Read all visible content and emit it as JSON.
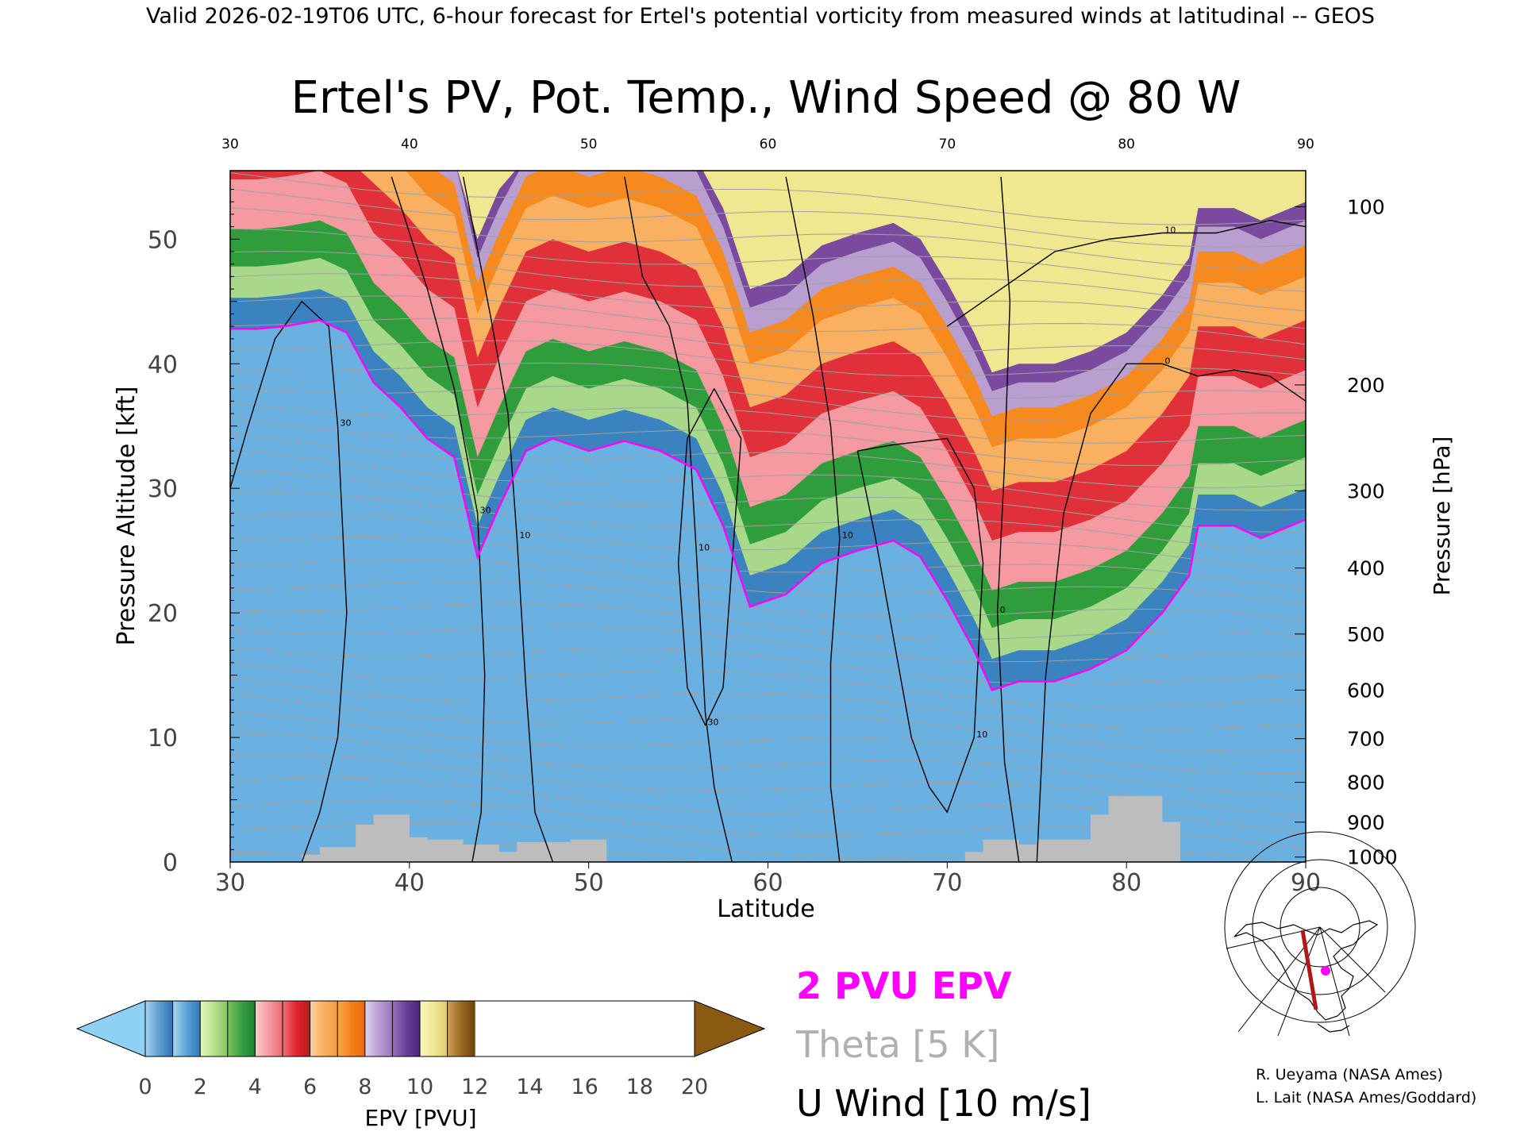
{
  "header": "Valid 2026-02-19T06 UTC, 6-hour forecast for Ertel's potential vorticity from measured winds at latitudinal -- GEOS",
  "chart_data": {
    "type": "heatmap",
    "title": "Ertel's PV, Pot. Temp., Wind Speed @ 80 W",
    "xlabel": "Latitude",
    "ylabel": "Pressure Altitude [kft]",
    "y2label": "Pressure [hPa]",
    "xlim": [
      30,
      90
    ],
    "ylim": [
      0,
      55.5
    ],
    "x_ticks": [
      "30",
      "40",
      "50",
      "60",
      "70",
      "80",
      "90"
    ],
    "x_top_ticks": [
      "30",
      "40",
      "50",
      "60",
      "70",
      "80",
      "90"
    ],
    "y_ticks": [
      {
        "value": 0,
        "label": "0"
      },
      {
        "value": 10,
        "label": "10"
      },
      {
        "value": 20,
        "label": "20"
      },
      {
        "value": 30,
        "label": "30"
      },
      {
        "value": 40,
        "label": "40"
      },
      {
        "value": 50,
        "label": "50"
      }
    ],
    "pressure_ticks": [
      {
        "kft": 52.6,
        "label": "100"
      },
      {
        "kft": 38.3,
        "label": "200"
      },
      {
        "kft": 29.8,
        "label": "300"
      },
      {
        "kft": 23.6,
        "label": "400"
      },
      {
        "kft": 18.3,
        "label": "500"
      },
      {
        "kft": 13.8,
        "label": "600"
      },
      {
        "kft": 9.9,
        "label": "700"
      },
      {
        "kft": 6.4,
        "label": "800"
      },
      {
        "kft": 3.2,
        "label": "900"
      },
      {
        "kft": 0.4,
        "label": "1000"
      }
    ],
    "pv_2pvu_line": [
      [
        30,
        42.8
      ],
      [
        31.5,
        42.8
      ],
      [
        33,
        43.0
      ],
      [
        35,
        43.5
      ],
      [
        36.5,
        42.5
      ],
      [
        38,
        38.5
      ],
      [
        39.5,
        36.5
      ],
      [
        41,
        34.0
      ],
      [
        42.5,
        32.5
      ],
      [
        43.8,
        24.5
      ],
      [
        45,
        28.5
      ],
      [
        46.5,
        33.0
      ],
      [
        48,
        34.0
      ],
      [
        50,
        33.0
      ],
      [
        52,
        33.8
      ],
      [
        54,
        33.0
      ],
      [
        56,
        31.5
      ],
      [
        57.5,
        27.0
      ],
      [
        59,
        20.5
      ],
      [
        61,
        21.5
      ],
      [
        63,
        24.0
      ],
      [
        65,
        25.0
      ],
      [
        67,
        25.8
      ],
      [
        68.5,
        24.5
      ],
      [
        70,
        21.0
      ],
      [
        71.5,
        17.0
      ],
      [
        72.5,
        13.8
      ],
      [
        74,
        14.5
      ],
      [
        76,
        14.5
      ],
      [
        78,
        15.5
      ],
      [
        80,
        17.0
      ],
      [
        82,
        20.0
      ],
      [
        83.5,
        23.0
      ],
      [
        84,
        27.0
      ],
      [
        86,
        27.0
      ],
      [
        87.5,
        26.0
      ],
      [
        90,
        27.5
      ]
    ],
    "surface_terrain": [
      [
        30,
        0
      ],
      [
        34,
        0
      ],
      [
        34,
        0.6
      ],
      [
        35,
        0.6
      ],
      [
        35,
        1.2
      ],
      [
        37,
        1.2
      ],
      [
        37,
        3.0
      ],
      [
        38,
        3.0
      ],
      [
        38,
        3.8
      ],
      [
        40,
        3.8
      ],
      [
        40,
        2.0
      ],
      [
        41,
        2.0
      ],
      [
        41,
        1.8
      ],
      [
        43,
        1.8
      ],
      [
        43,
        1.4
      ],
      [
        45,
        1.4
      ],
      [
        45,
        0.8
      ],
      [
        46,
        0.8
      ],
      [
        46,
        1.6
      ],
      [
        49,
        1.6
      ],
      [
        49,
        1.8
      ],
      [
        51,
        1.8
      ],
      [
        51,
        0
      ],
      [
        71,
        0
      ],
      [
        71,
        0.8
      ],
      [
        72,
        0.8
      ],
      [
        72,
        1.8
      ],
      [
        74,
        1.8
      ],
      [
        74,
        1.4
      ],
      [
        75,
        1.4
      ],
      [
        75,
        1.8
      ],
      [
        78,
        1.8
      ],
      [
        78,
        3.8
      ],
      [
        79,
        3.8
      ],
      [
        79,
        5.3
      ],
      [
        81,
        5.3
      ],
      [
        81,
        3.2
      ],
      [
        80.5,
        3.2
      ],
      [
        81,
        3.2
      ],
      [
        81,
        5.3
      ],
      [
        82,
        5.3
      ],
      [
        82,
        3.2
      ],
      [
        83,
        3.2
      ],
      [
        83,
        0
      ],
      [
        90,
        0
      ]
    ],
    "u_wind_contours": [
      {
        "label": "30",
        "points": [
          [
            30,
            30
          ],
          [
            31,
            35
          ],
          [
            32.5,
            42
          ],
          [
            34,
            45
          ],
          [
            35.5,
            43
          ],
          [
            36,
            35
          ],
          [
            36.5,
            20
          ],
          [
            36,
            10
          ],
          [
            35,
            4
          ],
          [
            34,
            0
          ]
        ]
      },
      {
        "label": "30",
        "points": [
          [
            39,
            55
          ],
          [
            41,
            46
          ],
          [
            42.5,
            38
          ],
          [
            43.8,
            28
          ],
          [
            44.2,
            15
          ],
          [
            44,
            4
          ],
          [
            43.5,
            0
          ]
        ]
      },
      {
        "label": "10",
        "points": [
          [
            43,
            55
          ],
          [
            44.5,
            44
          ],
          [
            45.5,
            36
          ],
          [
            46,
            26
          ],
          [
            46.5,
            14
          ],
          [
            47,
            4
          ],
          [
            48,
            0
          ]
        ]
      },
      {
        "label": "10",
        "points": [
          [
            52,
            55
          ],
          [
            53,
            47
          ],
          [
            54.5,
            43
          ],
          [
            55.5,
            37
          ],
          [
            56,
            25
          ],
          [
            56.5,
            12
          ],
          [
            57,
            6
          ],
          [
            58,
            0
          ]
        ]
      },
      {
        "label": "30",
        "points": [
          [
            57,
            38
          ],
          [
            55.5,
            34
          ],
          [
            55,
            24
          ],
          [
            55.5,
            14
          ],
          [
            56.5,
            11
          ],
          [
            57.5,
            14
          ],
          [
            58,
            24
          ],
          [
            58.5,
            34
          ],
          [
            57,
            38
          ]
        ]
      },
      {
        "label": "10",
        "points": [
          [
            61,
            55
          ],
          [
            62.5,
            44
          ],
          [
            63.5,
            35
          ],
          [
            64,
            26
          ],
          [
            63.5,
            16
          ],
          [
            63.5,
            6
          ],
          [
            64,
            0
          ]
        ]
      },
      {
        "label": "10",
        "points": [
          [
            65,
            33
          ],
          [
            66,
            26
          ],
          [
            67,
            18
          ],
          [
            68,
            10
          ],
          [
            69,
            6
          ],
          [
            70,
            4
          ],
          [
            71.5,
            10
          ],
          [
            72,
            24
          ],
          [
            71.5,
            30
          ],
          [
            70,
            34
          ],
          [
            67,
            33.5
          ],
          [
            65,
            33
          ]
        ]
      },
      {
        "label": "0",
        "points": [
          [
            73,
            55
          ],
          [
            73.5,
            45
          ],
          [
            73.2,
            32
          ],
          [
            72.8,
            20
          ],
          [
            73.2,
            8
          ],
          [
            74,
            0
          ]
        ]
      },
      {
        "label": "0",
        "points": [
          [
            75,
            0
          ],
          [
            75.5,
            15
          ],
          [
            76.5,
            28
          ],
          [
            78,
            36
          ],
          [
            80,
            40
          ],
          [
            82,
            40
          ],
          [
            84,
            39
          ],
          [
            86,
            39.5
          ],
          [
            88,
            39
          ],
          [
            90,
            37
          ]
        ]
      },
      {
        "label": "10",
        "points": [
          [
            70,
            43
          ],
          [
            73,
            46
          ],
          [
            76,
            49
          ],
          [
            79,
            50
          ],
          [
            82,
            50.5
          ],
          [
            85,
            50.5
          ],
          [
            88,
            51.5
          ],
          [
            90,
            51
          ]
        ]
      }
    ],
    "pv_levels": [
      {
        "label": "0",
        "color": "#6ab0e0"
      },
      {
        "label": "2",
        "color": "#3b82c0"
      },
      {
        "label": "4",
        "color": "#a8d98a"
      },
      {
        "label": "6",
        "color": "#2f9d3c"
      },
      {
        "label": "8",
        "color": "#f59aa0"
      },
      {
        "label": "10",
        "color": "#e0303a"
      },
      {
        "label": "12",
        "color": "#f9b060"
      },
      {
        "label": "14",
        "color": "#f78a1e"
      },
      {
        "label": "16",
        "color": "#b89fd0"
      },
      {
        "label": "18",
        "color": "#7a4a9e"
      },
      {
        "label": "20",
        "color": "#f0e890"
      }
    ],
    "colorbar_label": "EPV [PVU]",
    "colorbar_colors": {
      "min_arrow": "#8fd0f5",
      "max_arrow": "#8b5a12",
      "segments": [
        [
          "#a9d2ec",
          "#5c9fd2",
          "#2f6fb0"
        ],
        [
          "#a9d6f2",
          "#5aa4d8",
          "#2e78b8"
        ],
        [
          "#e6f5bc",
          "#b9e08e",
          "#7fc661"
        ],
        [
          "#7fc458",
          "#39a046",
          "#1f7d2d"
        ],
        [
          "#f8d0d0",
          "#f59aa0",
          "#e66a72"
        ],
        [
          "#f27078",
          "#e3242e",
          "#b81a22"
        ],
        [
          "#fbd4a4",
          "#f9b060",
          "#f59a3a"
        ],
        [
          "#f9a850",
          "#f58018",
          "#e66a0a"
        ],
        [
          "#e0d2ee",
          "#b89fd0",
          "#9878bc"
        ],
        [
          "#9a72c0",
          "#6a3d98",
          "#4a2478"
        ],
        [
          "#fbf4c0",
          "#f0e890",
          "#e0c870"
        ],
        [
          "#d0a060",
          "#9a6a20",
          "#6a4210"
        ]
      ]
    },
    "legend": [
      {
        "text": "2 PVU EPV",
        "color": "#ff00ff"
      },
      {
        "text": "Theta [5 K]",
        "color": "#b0b0b0"
      },
      {
        "text": "U Wind [10 m/s]",
        "color": "#000000"
      }
    ],
    "field_colors": {
      "pv_line": "#ff00ff",
      "theta": "#a0a0a0",
      "terrain": "#bdbdbd",
      "wind": "#000000",
      "inset_track": "#b01818",
      "inset_dot": "#ff00ff"
    }
  },
  "credits": [
    "R. Ueyama (NASA Ames)",
    "L. Lait (NASA Ames/Goddard)"
  ]
}
